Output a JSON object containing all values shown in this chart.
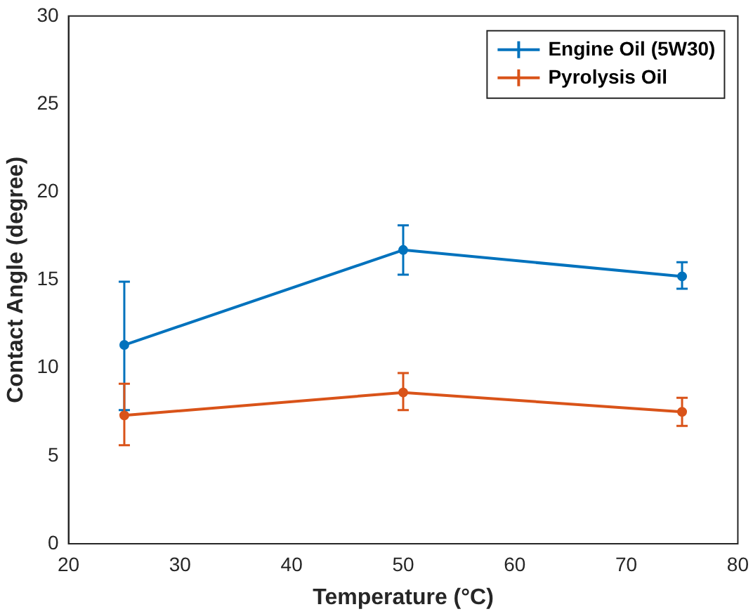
{
  "chart_data": {
    "type": "line",
    "xlabel": "Temperature (°C)",
    "ylabel": "Contact Angle (degree)",
    "x": [
      25,
      50,
      75
    ],
    "series": [
      {
        "name": "Engine Oil (5W30)",
        "color": "#0072bd",
        "values": [
          11.3,
          16.7,
          15.2
        ],
        "errors": [
          [
            7.6,
            14.9
          ],
          [
            15.3,
            18.1
          ],
          [
            14.5,
            16.0
          ]
        ]
      },
      {
        "name": "Pyrolysis Oil",
        "color": "#d95319",
        "values": [
          7.3,
          8.6,
          7.5
        ],
        "errors": [
          [
            5.6,
            9.1
          ],
          [
            7.6,
            9.7
          ],
          [
            6.7,
            8.3
          ]
        ]
      }
    ],
    "xlim": [
      20,
      80
    ],
    "xticks": [
      20,
      30,
      40,
      50,
      60,
      70,
      80
    ],
    "ylim": [
      0,
      30
    ],
    "yticks": [
      0,
      5,
      10,
      15,
      20,
      25,
      30
    ],
    "grid": false,
    "legend": "top right",
    "marker": "circle",
    "line_style": "solid"
  }
}
